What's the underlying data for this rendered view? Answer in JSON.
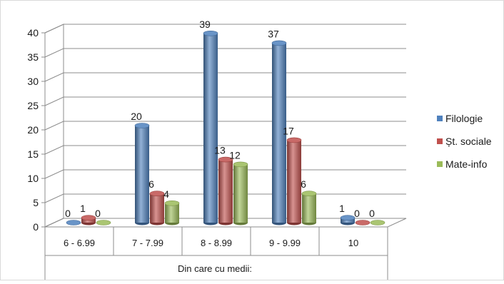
{
  "chart_data": {
    "type": "bar",
    "categories": [
      "6 - 6.99",
      "7 - 7.99",
      "8 - 8.99",
      "9 - 9.99",
      "10"
    ],
    "series": [
      {
        "name": "Filologie",
        "values": [
          0,
          20,
          39,
          37,
          1
        ],
        "color": "#4F81BD"
      },
      {
        "name": "Șt. sociale",
        "values": [
          1,
          6,
          13,
          17,
          0
        ],
        "color": "#C0504D"
      },
      {
        "name": "Mate-info",
        "values": [
          0,
          4,
          12,
          6,
          0
        ],
        "color": "#9BBB59"
      }
    ],
    "xlabel": "Din care cu medii:",
    "ylabel": "",
    "ylim": [
      0,
      40
    ],
    "yticks": [
      0,
      5,
      10,
      15,
      20,
      25,
      30,
      35,
      40
    ],
    "grid": true,
    "legend": "right",
    "data_labels": true,
    "style": "3d-cylinder"
  }
}
